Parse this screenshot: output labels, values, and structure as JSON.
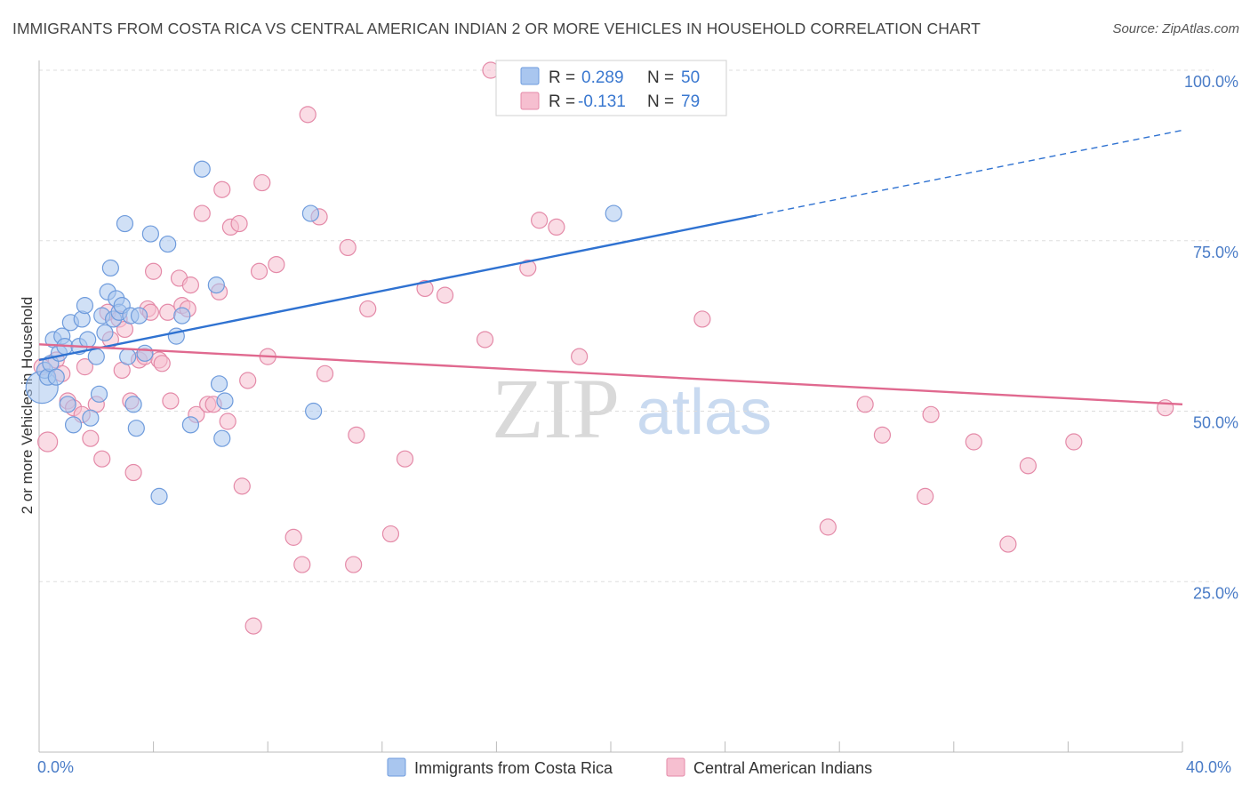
{
  "header": {
    "title": "IMMIGRANTS FROM COSTA RICA VS CENTRAL AMERICAN INDIAN 2 OR MORE VEHICLES IN HOUSEHOLD CORRELATION CHART",
    "source": "Source: ZipAtlas.com"
  },
  "watermark": {
    "zip": "ZIP",
    "atlas": "atlas"
  },
  "colors": {
    "blue_fill": "#a9c6ef",
    "blue_stroke": "#6e9bdc",
    "blue_line": "#2f72d1",
    "pink_fill": "#f6bfd0",
    "pink_stroke": "#e48aa8",
    "pink_line": "#e0698f",
    "grid": "#dddddd",
    "tick_text": "#4a7cc7"
  },
  "legend": {
    "r_label": "R =",
    "n_label": "N =",
    "series": [
      {
        "r": "0.289",
        "n": "50"
      },
      {
        "r": "-0.131",
        "n": "79"
      }
    ]
  },
  "bottom_legend": {
    "items": [
      {
        "label": "Immigrants from Costa Rica"
      },
      {
        "label": "Central American Indians"
      }
    ]
  },
  "chart_data": {
    "type": "scatter",
    "title": "IMMIGRANTS FROM COSTA RICA VS CENTRAL AMERICAN INDIAN 2 OR MORE VEHICLES IN HOUSEHOLD CORRELATION CHART",
    "xlabel": "",
    "ylabel": "2 or more Vehicles in Household",
    "xlim": [
      0,
      40
    ],
    "ylim": [
      0,
      105
    ],
    "x_ticks": [
      "0.0%",
      "40.0%"
    ],
    "y_ticks": [
      {
        "value": 100,
        "label": "100.0%"
      },
      {
        "value": 75,
        "label": "75.0%"
      },
      {
        "value": 50,
        "label": "50.0%"
      },
      {
        "value": 25,
        "label": "25.0%"
      }
    ],
    "grid": true,
    "legend_position": "top-center",
    "series": [
      {
        "name": "Immigrants from Costa Rica",
        "r": 0.289,
        "n": 50,
        "trend": {
          "x_start": 0,
          "y_start": 57.5,
          "x_solid_end": 25.1,
          "y_solid_end": 78.7,
          "x_dash_end": 40,
          "y_dash_end": 91.2
        },
        "points": [
          [
            0.1,
            53.5,
            18
          ],
          [
            0.2,
            56.0,
            9
          ],
          [
            0.3,
            55.0,
            9
          ],
          [
            0.4,
            57.0,
            9
          ],
          [
            0.5,
            60.5,
            9
          ],
          [
            0.6,
            55.0,
            9
          ],
          [
            0.7,
            58.5,
            9
          ],
          [
            0.8,
            61.0,
            9
          ],
          [
            0.9,
            59.5,
            9
          ],
          [
            1.0,
            51.0,
            9
          ],
          [
            1.1,
            63.0,
            9
          ],
          [
            1.2,
            48.0,
            9
          ],
          [
            1.4,
            59.5,
            9
          ],
          [
            1.5,
            63.5,
            9
          ],
          [
            1.6,
            65.5,
            9
          ],
          [
            1.7,
            60.5,
            9
          ],
          [
            1.8,
            49.0,
            9
          ],
          [
            2.0,
            58.0,
            9
          ],
          [
            2.1,
            52.5,
            9
          ],
          [
            2.2,
            64.0,
            9
          ],
          [
            2.3,
            61.5,
            9
          ],
          [
            2.4,
            67.5,
            9
          ],
          [
            2.5,
            71.0,
            9
          ],
          [
            2.6,
            63.5,
            9
          ],
          [
            2.7,
            66.5,
            9
          ],
          [
            2.8,
            64.5,
            9
          ],
          [
            2.9,
            65.5,
            9
          ],
          [
            3.0,
            77.5,
            9
          ],
          [
            3.1,
            58.0,
            9
          ],
          [
            3.2,
            64.0,
            9
          ],
          [
            3.3,
            51.0,
            9
          ],
          [
            3.4,
            47.5,
            9
          ],
          [
            3.5,
            64.0,
            9
          ],
          [
            3.7,
            58.5,
            9
          ],
          [
            3.9,
            76.0,
            9
          ],
          [
            4.2,
            37.5,
            9
          ],
          [
            4.5,
            74.5,
            9
          ],
          [
            4.8,
            61.0,
            9
          ],
          [
            5.0,
            64.0,
            9
          ],
          [
            5.3,
            48.0,
            9
          ],
          [
            5.7,
            85.5,
            9
          ],
          [
            6.2,
            68.5,
            9
          ],
          [
            6.3,
            54.0,
            9
          ],
          [
            6.4,
            46.0,
            9
          ],
          [
            6.5,
            51.5,
            9
          ],
          [
            9.5,
            79.0,
            9
          ],
          [
            9.6,
            50.0,
            9
          ],
          [
            20.1,
            79.0,
            9
          ]
        ]
      },
      {
        "name": "Central American Indians",
        "r": -0.131,
        "n": 79,
        "trend": {
          "x_start": 0,
          "y_start": 59.8,
          "x_end": 40,
          "y_end": 51.0
        },
        "points": [
          [
            0.1,
            56.5,
            9
          ],
          [
            0.3,
            45.5,
            11
          ],
          [
            0.6,
            57.5,
            9
          ],
          [
            0.8,
            55.5,
            9
          ],
          [
            1.0,
            51.5,
            9
          ],
          [
            1.2,
            50.5,
            9
          ],
          [
            1.5,
            49.5,
            9
          ],
          [
            1.6,
            56.5,
            9
          ],
          [
            1.8,
            46.0,
            9
          ],
          [
            2.0,
            51.0,
            9
          ],
          [
            2.2,
            43.0,
            9
          ],
          [
            2.4,
            64.5,
            9
          ],
          [
            2.5,
            60.5,
            9
          ],
          [
            2.8,
            63.5,
            9
          ],
          [
            2.9,
            56.0,
            9
          ],
          [
            3.0,
            62.0,
            9
          ],
          [
            3.2,
            51.5,
            9
          ],
          [
            3.3,
            41.0,
            9
          ],
          [
            3.5,
            57.5,
            9
          ],
          [
            3.7,
            58.0,
            9
          ],
          [
            3.8,
            65.0,
            9
          ],
          [
            3.9,
            64.5,
            9
          ],
          [
            4.0,
            70.5,
            9
          ],
          [
            4.2,
            57.5,
            9
          ],
          [
            4.3,
            57.0,
            9
          ],
          [
            4.5,
            64.5,
            9
          ],
          [
            4.6,
            51.5,
            9
          ],
          [
            4.9,
            69.5,
            9
          ],
          [
            5.0,
            65.5,
            9
          ],
          [
            5.2,
            65.0,
            9
          ],
          [
            5.3,
            68.5,
            9
          ],
          [
            5.5,
            49.5,
            9
          ],
          [
            5.7,
            79.0,
            9
          ],
          [
            5.9,
            51.0,
            9
          ],
          [
            6.1,
            51.0,
            9
          ],
          [
            6.3,
            67.5,
            9
          ],
          [
            6.4,
            82.5,
            9
          ],
          [
            6.6,
            48.5,
            9
          ],
          [
            6.7,
            77.0,
            9
          ],
          [
            7.0,
            77.5,
            9
          ],
          [
            7.1,
            39.0,
            9
          ],
          [
            7.3,
            54.5,
            9
          ],
          [
            7.5,
            18.5,
            9
          ],
          [
            7.7,
            70.5,
            9
          ],
          [
            7.8,
            83.5,
            9
          ],
          [
            8.0,
            58.0,
            9
          ],
          [
            8.3,
            71.5,
            9
          ],
          [
            8.9,
            31.5,
            9
          ],
          [
            9.2,
            27.5,
            9
          ],
          [
            9.4,
            93.5,
            9
          ],
          [
            9.8,
            78.5,
            9
          ],
          [
            10.0,
            55.5,
            9
          ],
          [
            10.8,
            74.0,
            9
          ],
          [
            11.0,
            27.5,
            9
          ],
          [
            11.1,
            46.5,
            9
          ],
          [
            11.5,
            65.0,
            9
          ],
          [
            12.3,
            32.0,
            9
          ],
          [
            12.8,
            43.0,
            9
          ],
          [
            13.5,
            68.0,
            9
          ],
          [
            14.2,
            67.0,
            9
          ],
          [
            15.6,
            60.5,
            9
          ],
          [
            15.8,
            100.0,
            9
          ],
          [
            17.1,
            71.0,
            9
          ],
          [
            17.5,
            78.0,
            9
          ],
          [
            18.1,
            77.0,
            9
          ],
          [
            18.9,
            58.0,
            9
          ],
          [
            22.3,
            100.0,
            9
          ],
          [
            23.2,
            63.5,
            9
          ],
          [
            27.6,
            33.0,
            9
          ],
          [
            28.9,
            51.0,
            9
          ],
          [
            29.5,
            46.5,
            9
          ],
          [
            31.0,
            37.5,
            9
          ],
          [
            31.2,
            49.5,
            9
          ],
          [
            32.7,
            45.5,
            9
          ],
          [
            33.9,
            30.5,
            9
          ],
          [
            34.6,
            42.0,
            9
          ],
          [
            36.2,
            45.5,
            9
          ],
          [
            39.4,
            50.5,
            9
          ]
        ]
      }
    ]
  }
}
